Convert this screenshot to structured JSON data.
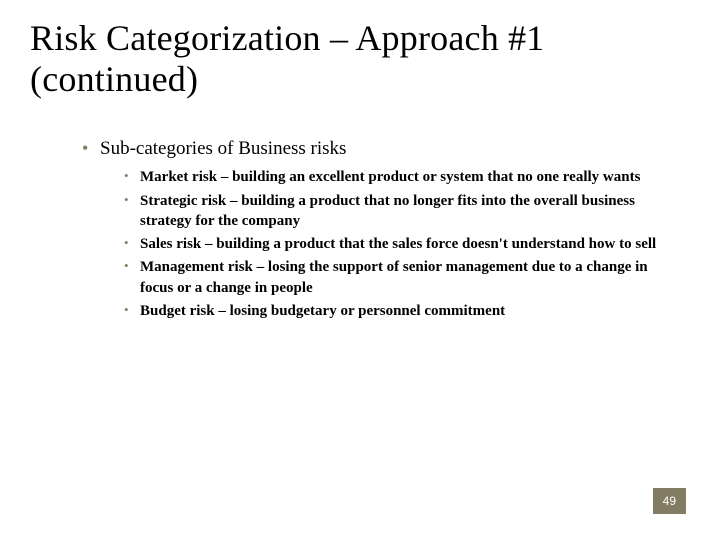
{
  "slide": {
    "title": "Risk Categorization – Approach #1 (continued)",
    "level1_heading": "Sub-categories of Business risks",
    "risks": [
      {
        "term": "Market risk",
        "desc": " – building an excellent product or system that no one really wants"
      },
      {
        "term": "Strategic risk",
        "desc": " – building a product that no longer fits into the overall business strategy for the company"
      },
      {
        "term": "Sales risk",
        "desc": " – building a product that the sales force doesn't understand how to sell"
      },
      {
        "term": "Management risk",
        "desc": " – losing the support of senior management due to a change in focus or a change in people"
      },
      {
        "term": "Budget risk",
        "desc": " – losing budgetary or personnel commitment"
      }
    ],
    "page_number": "49"
  },
  "colors": {
    "bullet": "#827d62",
    "text": "#000000",
    "page_badge_bg": "#827d62",
    "page_badge_text": "#ffffff",
    "background": "#ffffff"
  },
  "typography": {
    "title_fontsize": 36,
    "level1_fontsize": 19,
    "level2_fontsize": 15,
    "font_family": "Georgia, Times New Roman, serif"
  }
}
